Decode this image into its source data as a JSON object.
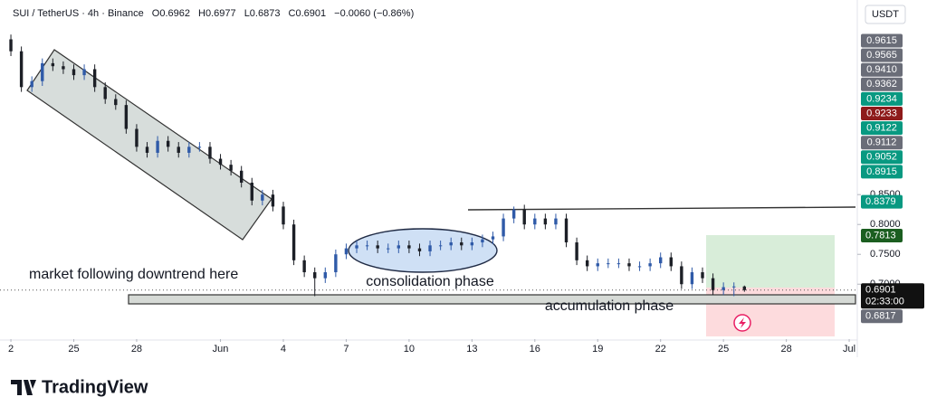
{
  "header": {
    "symbol": "SUI / TetherUS · 4h · Binance",
    "ohlc": [
      "O0.6962",
      "H0.6977",
      "L0.6873",
      "C0.6901"
    ],
    "change": "−0.0060 (−0.86%)"
  },
  "chart_data": {
    "type": "candlestick",
    "x": [
      0,
      0.5,
      1,
      1.5,
      2,
      2.5,
      3,
      3.5,
      4,
      4.5,
      5,
      5.5,
      6,
      6.5,
      7,
      7.5,
      8,
      8.5,
      9,
      9.5,
      10,
      10.5,
      11,
      11.5,
      12,
      12.5,
      13,
      13.5,
      14,
      14.5,
      15,
      15.5,
      16,
      16.5,
      17,
      17.5,
      18,
      18.5,
      19,
      19.5,
      20,
      20.5,
      21,
      21.5,
      22,
      22.5,
      23,
      23.5,
      24,
      24.5,
      25,
      25.5,
      26,
      26.5,
      27,
      27.5,
      28,
      28.5,
      29,
      29.5,
      30,
      30.5,
      31,
      31.5,
      32,
      32.5,
      33,
      33.5,
      34,
      34.5,
      35
    ],
    "open": [
      1.11,
      1.09,
      1.03,
      1.04,
      1.07,
      1.065,
      1.06,
      1.05,
      1.06,
      1.03,
      1.01,
      1.0,
      0.96,
      0.93,
      0.92,
      0.94,
      0.93,
      0.92,
      0.93,
      0.93,
      0.91,
      0.9,
      0.89,
      0.87,
      0.84,
      0.85,
      0.83,
      0.8,
      0.74,
      0.72,
      0.71,
      0.72,
      0.75,
      0.76,
      0.765,
      0.765,
      0.76,
      0.76,
      0.765,
      0.76,
      0.755,
      0.765,
      0.765,
      0.77,
      0.765,
      0.77,
      0.775,
      0.78,
      0.81,
      0.825,
      0.8,
      0.81,
      0.8,
      0.81,
      0.77,
      0.74,
      0.73,
      0.735,
      0.735,
      0.735,
      0.73,
      0.73,
      0.735,
      0.745,
      0.73,
      0.7,
      0.72,
      0.71,
      0.69,
      0.695,
      0.6962
    ],
    "high": [
      1.118,
      1.098,
      1.048,
      1.078,
      1.078,
      1.073,
      1.068,
      1.068,
      1.068,
      1.038,
      1.018,
      1.008,
      0.968,
      0.938,
      0.948,
      0.948,
      0.938,
      0.938,
      0.938,
      0.938,
      0.918,
      0.908,
      0.898,
      0.878,
      0.858,
      0.858,
      0.838,
      0.808,
      0.748,
      0.728,
      0.728,
      0.758,
      0.768,
      0.773,
      0.773,
      0.773,
      0.768,
      0.773,
      0.773,
      0.768,
      0.773,
      0.773,
      0.778,
      0.778,
      0.778,
      0.783,
      0.788,
      0.818,
      0.83,
      0.833,
      0.818,
      0.818,
      0.818,
      0.818,
      0.778,
      0.748,
      0.743,
      0.743,
      0.743,
      0.743,
      0.738,
      0.743,
      0.753,
      0.753,
      0.738,
      0.728,
      0.728,
      0.718,
      0.703,
      0.703,
      0.6977
    ],
    "low": [
      1.082,
      1.022,
      1.022,
      1.032,
      1.057,
      1.052,
      1.042,
      1.042,
      1.022,
      1.002,
      0.992,
      0.952,
      0.922,
      0.912,
      0.912,
      0.922,
      0.912,
      0.912,
      0.922,
      0.902,
      0.892,
      0.882,
      0.862,
      0.832,
      0.832,
      0.822,
      0.792,
      0.732,
      0.712,
      0.68,
      0.702,
      0.712,
      0.742,
      0.752,
      0.757,
      0.752,
      0.752,
      0.752,
      0.752,
      0.747,
      0.747,
      0.757,
      0.757,
      0.757,
      0.757,
      0.762,
      0.767,
      0.772,
      0.802,
      0.792,
      0.792,
      0.792,
      0.792,
      0.762,
      0.732,
      0.722,
      0.722,
      0.727,
      0.727,
      0.722,
      0.722,
      0.722,
      0.727,
      0.722,
      0.692,
      0.692,
      0.702,
      0.682,
      0.682,
      0.68,
      0.6873
    ],
    "close": [
      1.09,
      1.03,
      1.04,
      1.07,
      1.065,
      1.06,
      1.05,
      1.06,
      1.03,
      1.01,
      1.0,
      0.96,
      0.93,
      0.92,
      0.94,
      0.93,
      0.92,
      0.93,
      0.93,
      0.91,
      0.9,
      0.89,
      0.87,
      0.84,
      0.85,
      0.83,
      0.8,
      0.74,
      0.72,
      0.71,
      0.72,
      0.75,
      0.76,
      0.765,
      0.765,
      0.76,
      0.76,
      0.765,
      0.76,
      0.755,
      0.765,
      0.765,
      0.77,
      0.765,
      0.77,
      0.775,
      0.78,
      0.81,
      0.825,
      0.8,
      0.81,
      0.8,
      0.81,
      0.77,
      0.74,
      0.73,
      0.735,
      0.735,
      0.735,
      0.73,
      0.73,
      0.735,
      0.745,
      0.73,
      0.7,
      0.72,
      0.71,
      0.69,
      0.695,
      0.6962,
      0.6901
    ],
    "up_color": "#2f5aa8",
    "down_color": "#1c1f26",
    "xlim": [
      -0.52,
      40.3
    ],
    "xticks": [
      {
        "value": 0,
        "label": "2"
      },
      {
        "value": 3,
        "label": "25"
      },
      {
        "value": 6,
        "label": "28"
      },
      {
        "value": 10,
        "label": "Jun"
      },
      {
        "value": 13,
        "label": "4"
      },
      {
        "value": 16,
        "label": "7"
      },
      {
        "value": 19,
        "label": "10"
      },
      {
        "value": 22,
        "label": "13"
      },
      {
        "value": 25,
        "label": "16"
      },
      {
        "value": 28,
        "label": "19"
      },
      {
        "value": 31,
        "label": "22"
      },
      {
        "value": 34,
        "label": "25"
      },
      {
        "value": 37,
        "label": "28"
      },
      {
        "value": 40,
        "label": "Jul"
      }
    ],
    "ylim": [
      0.608,
      1.138
    ],
    "yticks": [
      {
        "value": 0.85,
        "label": "0.8500"
      },
      {
        "value": 0.8,
        "label": "0.8000"
      },
      {
        "value": 0.75,
        "label": "0.7500"
      },
      {
        "value": 0.7,
        "label": "0.7000"
      }
    ],
    "currency": "USDT",
    "price_labels": [
      {
        "label": "0.9615",
        "color": "#6a6d78"
      },
      {
        "label": "0.9565",
        "color": "#6a6d78"
      },
      {
        "label": "0.9410",
        "color": "#6a6d78"
      },
      {
        "label": "0.9362",
        "color": "#6a6d78"
      },
      {
        "label": "0.9234",
        "color": "#089981"
      },
      {
        "label": "0.9233",
        "color": "#8e1b1b"
      },
      {
        "label": "0.9122",
        "color": "#089981"
      },
      {
        "label": "0.9112",
        "color": "#6a6d78"
      },
      {
        "label": "0.9052",
        "color": "#089981"
      },
      {
        "label": "0.8915",
        "color": "#089981"
      }
    ],
    "markers": [
      {
        "value": 0.8379,
        "label": "0.8379",
        "color": "#089981"
      },
      {
        "value": 0.7813,
        "label": "0.7813",
        "color": "#1b5e20"
      },
      {
        "value": 0.6901,
        "label": "0.6901",
        "countdown": "02:33:00",
        "color": "#111111"
      },
      {
        "value": 0.6817,
        "label": "0.6817",
        "color": "#6a6d78"
      }
    ],
    "annotations": [
      "market following downtrend here",
      "consolidation phase",
      "accumulation phase"
    ]
  },
  "branding": "TradingView"
}
